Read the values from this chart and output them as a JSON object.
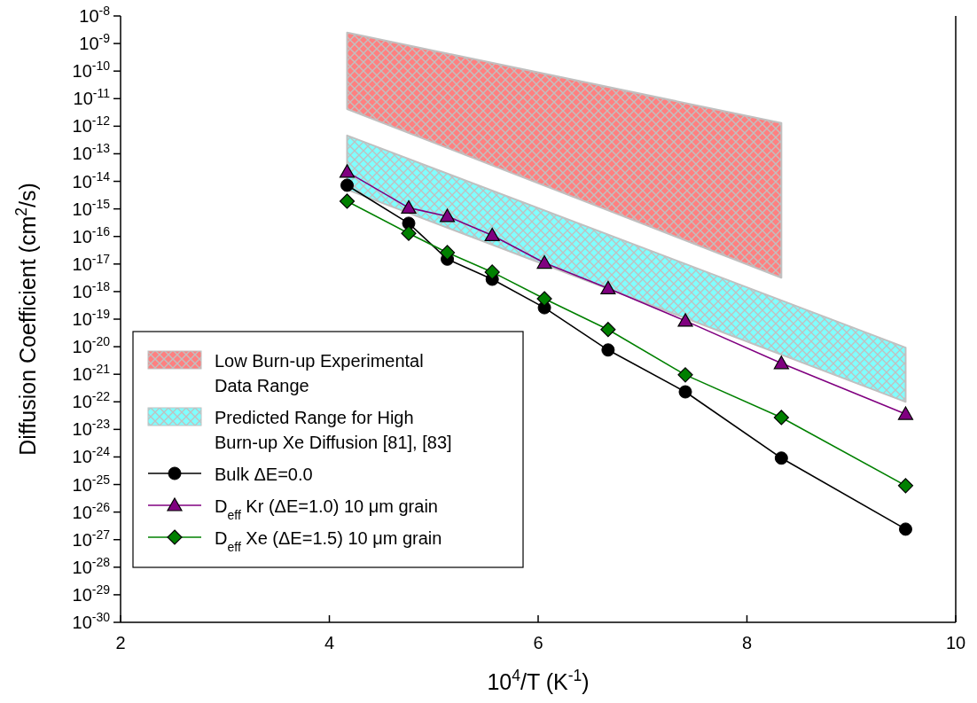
{
  "chart_data": {
    "type": "line",
    "xlabel": "10$^{4}$/T (K$^{-1}$)",
    "ylabel": "Diffusion Coefficient (cm$^{2}$/s)",
    "log": "y",
    "xlim": [
      2,
      10
    ],
    "xticks": [
      2,
      4,
      6,
      8,
      10
    ],
    "ylim": [
      1e-30,
      1e-08
    ],
    "yticks": [
      {
        "value": 1e-08,
        "label": "10$^{-8}$"
      },
      {
        "value": 1e-09,
        "label": "10$^{-9}$"
      },
      {
        "value": 1e-10,
        "label": "10$^{-10}$"
      },
      {
        "value": 1e-11,
        "label": "10$^{-11}$"
      },
      {
        "value": 1e-12,
        "label": "10$^{-12}$"
      },
      {
        "value": 1e-13,
        "label": "10$^{-13}$"
      },
      {
        "value": 1e-14,
        "label": "10$^{-14}$"
      },
      {
        "value": 1e-15,
        "label": "10$^{-15}$"
      },
      {
        "value": 1e-16,
        "label": "10$^{-16}$"
      },
      {
        "value": 1e-17,
        "label": "10$^{-17}$"
      },
      {
        "value": 1e-18,
        "label": "10$^{-18}$"
      },
      {
        "value": 1e-19,
        "label": "10$^{-19}$"
      },
      {
        "value": 1e-20,
        "label": "10$^{-20}$"
      },
      {
        "value": 1e-21,
        "label": "10$^{-21}$"
      },
      {
        "value": 1e-22,
        "label": "10$^{-22}$"
      },
      {
        "value": 1e-23,
        "label": "10$^{-23}$"
      },
      {
        "value": 1e-24,
        "label": "10$^{-24}$"
      },
      {
        "value": 1e-25,
        "label": "10$^{-25}$"
      },
      {
        "value": 1e-26,
        "label": "10$^{-26}$"
      },
      {
        "value": 1e-27,
        "label": "10$^{-27}$"
      },
      {
        "value": 1e-28,
        "label": "10$^{-28}$"
      },
      {
        "value": 1e-29,
        "label": "10$^{-29}$"
      },
      {
        "value": 1e-30,
        "label": "10$^{-30}$"
      }
    ],
    "grid": false,
    "legend": "bottom left",
    "line_style": "solid",
    "series": [
      {
        "type": "area",
        "name": "Low Burn-up Experimental Data Range",
        "color": "#ff8080",
        "x": [
          4.17,
          8.33
        ],
        "values": [
          null,
          null
        ],
        "upper": [
          2.5e-09,
          1.3e-12
        ],
        "lower": [
          4.2e-12,
          3.2e-18
        ]
      },
      {
        "type": "area",
        "name": "Predicted Range for High Burn-up Xe Diffusion [81], [83]",
        "color": "#80ffff",
        "x": [
          4.17,
          9.52
        ],
        "values": [
          null,
          null
        ],
        "upper": [
          4.6e-13,
          9.3e-21
        ],
        "lower": [
          5e-15,
          1e-22
        ]
      },
      {
        "name": "Bulk ΔE=0.0",
        "color": "#000000",
        "marker": "circle",
        "x": [
          4.17,
          4.76,
          5.13,
          5.56,
          6.06,
          6.67,
          7.41,
          8.33,
          9.52
        ],
        "values": [
          7.2e-15,
          3e-16,
          1.5e-17,
          2.8e-18,
          2.6e-19,
          7.6e-21,
          2.3e-22,
          9.1e-25,
          2.4e-27
        ]
      },
      {
        "name": "D$_{eff}$ Kr (ΔE=1.0) 10 μm grain",
        "color": "#800080",
        "marker": "triangle",
        "x": [
          4.17,
          4.76,
          5.13,
          5.56,
          6.06,
          6.67,
          7.41,
          8.33,
          9.52
        ],
        "values": [
          2.2e-14,
          1.1e-15,
          5.4e-16,
          1.1e-16,
          1.1e-17,
          1.3e-18,
          8.7e-20,
          2.5e-21,
          3.6e-23
        ]
      },
      {
        "name": "D$_{eff}$ Xe (ΔE=1.5) 10 μm grain",
        "color": "#008000",
        "marker": "diamond",
        "x": [
          4.17,
          4.76,
          5.13,
          5.56,
          6.06,
          6.67,
          7.41,
          8.33,
          9.52
        ],
        "values": [
          1.9e-15,
          1.3e-16,
          2.6e-17,
          5.1e-18,
          5.5e-19,
          4.2e-20,
          9.5e-22,
          2.7e-23,
          9.1e-26
        ]
      }
    ]
  }
}
